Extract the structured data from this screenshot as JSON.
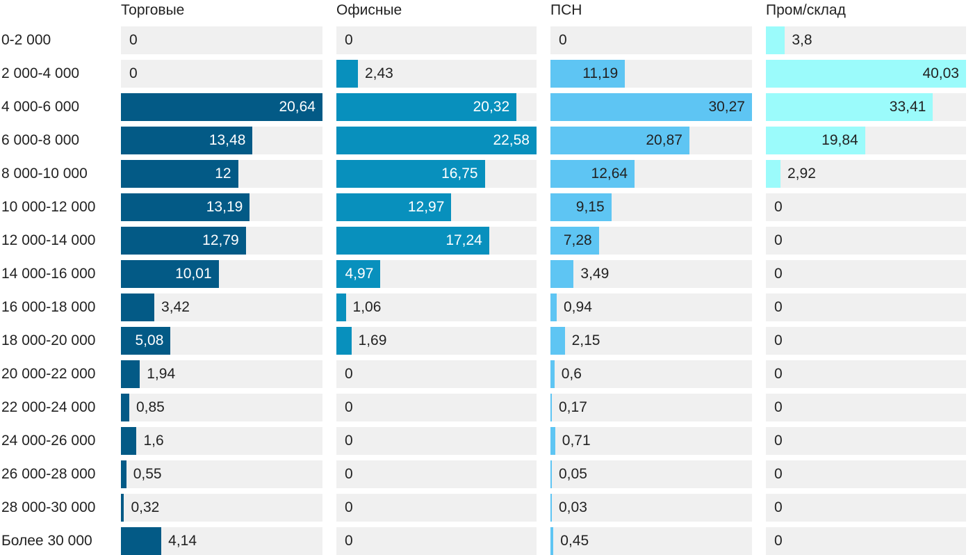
{
  "chart_data": {
    "type": "bar",
    "orientation": "horizontal",
    "layout": "small-multiples",
    "categories": [
      "0-2 000",
      "2 000-4 000",
      "4 000-6 000",
      "6 000-8 000",
      "8 000-10 000",
      "10 000-12 000",
      "12 000-14 000",
      "14 000-16 000",
      "16 000-18 000",
      "18 000-20 000",
      "20 000-22 000",
      "22 000-24 000",
      "24 000-26 000",
      "26 000-28 000",
      "28 000-30 000",
      "Более 30 000"
    ],
    "series": [
      {
        "name": "Торговые",
        "color": "#035a86",
        "labels": [
          "0",
          "0",
          "20,64",
          "13,48",
          "12",
          "13,19",
          "12,79",
          "10,01",
          "3,42",
          "5,08",
          "1,94",
          "0,85",
          "1,6",
          "0,55",
          "0,32",
          "4,14"
        ],
        "values": [
          0,
          0,
          20.64,
          13.48,
          12,
          13.19,
          12.79,
          10.01,
          3.42,
          5.08,
          1.94,
          0.85,
          1.6,
          0.55,
          0.32,
          4.14
        ]
      },
      {
        "name": "Офисные",
        "color": "#0890bd",
        "labels": [
          "0",
          "2,43",
          "20,32",
          "22,58",
          "16,75",
          "12,97",
          "17,24",
          "4,97",
          "1,06",
          "1,69",
          "0",
          "0",
          "0",
          "0",
          "0",
          "0"
        ],
        "values": [
          0,
          2.43,
          20.32,
          22.58,
          16.75,
          12.97,
          17.24,
          4.97,
          1.06,
          1.69,
          0,
          0,
          0,
          0,
          0,
          0
        ]
      },
      {
        "name": "ПСН",
        "color": "#5ec5f3",
        "labels": [
          "0",
          "11,19",
          "30,27",
          "20,87",
          "12,64",
          "9,15",
          "7,28",
          "3,49",
          "0,94",
          "2,15",
          "0,6",
          "0,17",
          "0,71",
          "0,05",
          "0,03",
          "0,45"
        ],
        "values": [
          0,
          11.19,
          30.27,
          20.87,
          12.64,
          9.15,
          7.28,
          3.49,
          0.94,
          2.15,
          0.6,
          0.17,
          0.71,
          0.05,
          0.03,
          0.45
        ]
      },
      {
        "name": "Пром/склад",
        "color": "#9bfbfb",
        "labels": [
          "3,8",
          "40,03",
          "33,41",
          "19,84",
          "2,92",
          "0",
          "0",
          "0",
          "0",
          "0",
          "0",
          "0",
          "0",
          "0",
          "0",
          "0"
        ],
        "values": [
          3.8,
          40.03,
          33.41,
          19.84,
          2.92,
          0,
          0,
          0,
          0,
          0,
          0,
          0,
          0,
          0,
          0,
          0
        ]
      }
    ],
    "background_bar_color": "#f0f0f0",
    "label_color_inside_dark": "#ffffff",
    "label_color_outside": "#222222",
    "grid": false,
    "legend": "none"
  }
}
